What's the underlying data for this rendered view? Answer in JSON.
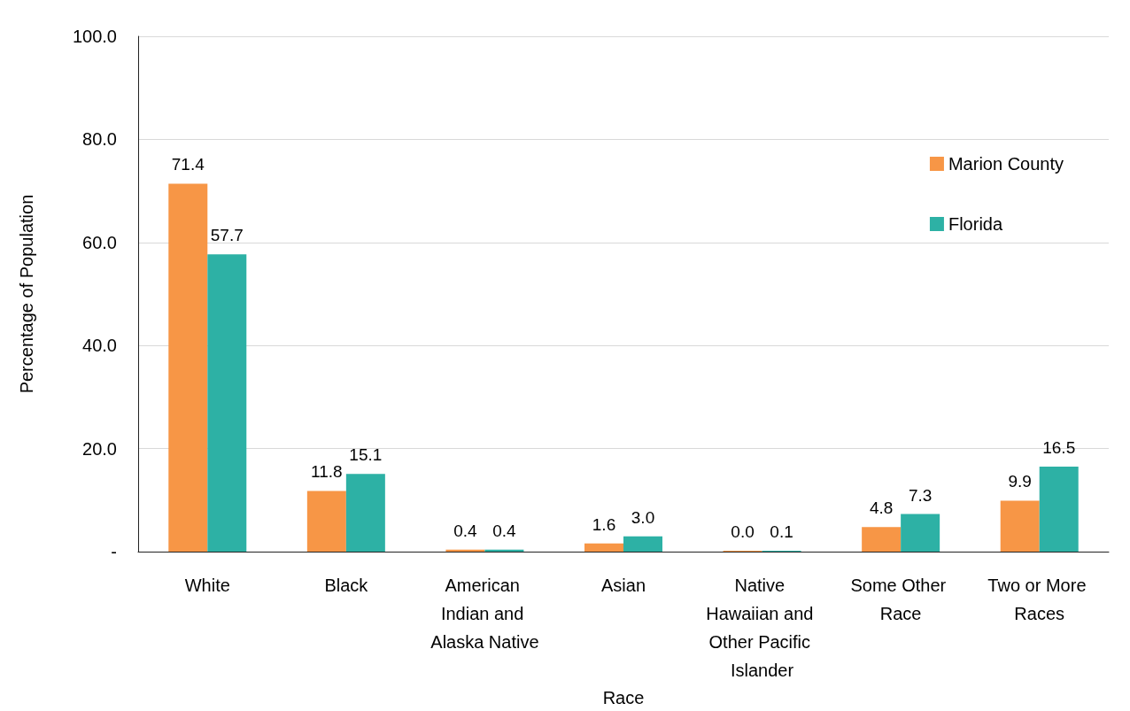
{
  "chart_data": {
    "type": "bar",
    "xlabel": "Race",
    "ylabel": "Percentage of Population",
    "categories": [
      "White",
      "Black",
      "American Indian and Alaska Native",
      "Asian",
      "Native Hawaiian and Other Pacific Islander",
      "Some Other Race",
      "Two or More Races"
    ],
    "series": [
      {
        "name": "Marion County",
        "color": "#f79646",
        "values": [
          71.4,
          11.8,
          0.4,
          1.6,
          0.0,
          4.8,
          9.9
        ],
        "value_labels": [
          "71.4",
          "11.8",
          "0.4",
          "1.6",
          "0.0",
          "4.8",
          "9.9"
        ]
      },
      {
        "name": "Florida",
        "color": "#2db1a5",
        "values": [
          57.7,
          15.1,
          0.4,
          3.0,
          0.1,
          7.3,
          16.5
        ],
        "value_labels": [
          "57.7",
          "15.1",
          "0.4",
          "3.0",
          "0.1",
          "7.3",
          "16.5"
        ]
      }
    ],
    "ylim": [
      0,
      100
    ],
    "yticks": [
      {
        "value": 0,
        "label": "-"
      },
      {
        "value": 20,
        "label": "20.0"
      },
      {
        "value": 40,
        "label": "40.0"
      },
      {
        "value": 60,
        "label": "60.0"
      },
      {
        "value": 80,
        "label": "80.0"
      },
      {
        "value": 100,
        "label": "100.0"
      }
    ],
    "grid": "y",
    "legend": "top right"
  }
}
